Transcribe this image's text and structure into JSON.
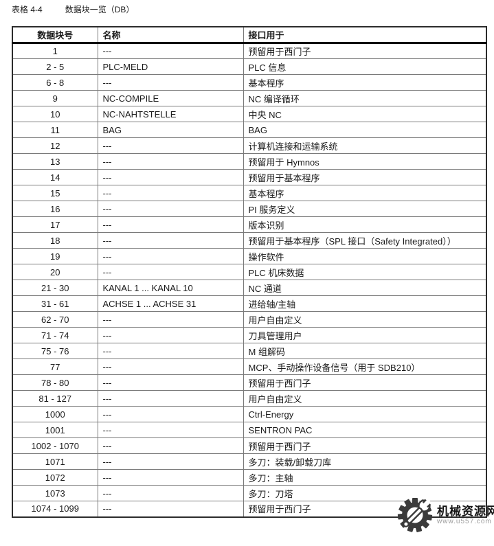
{
  "title": {
    "label": "表格 4-4",
    "caption": "数据块一览（DB）"
  },
  "table": {
    "headers": [
      "数据块号",
      "名称",
      "接口用于"
    ],
    "rows": [
      [
        "1",
        "---",
        "预留用于西门子"
      ],
      [
        "2 - 5",
        "PLC-MELD",
        "PLC 信息"
      ],
      [
        "6 - 8",
        "---",
        "基本程序"
      ],
      [
        "9",
        "NC-COMPILE",
        "NC 编译循环"
      ],
      [
        "10",
        "NC-NAHTSTELLE",
        "中央 NC"
      ],
      [
        "11",
        "BAG",
        "BAG"
      ],
      [
        "12",
        "---",
        "计算机连接和运输系统"
      ],
      [
        "13",
        "---",
        "预留用于 Hymnos"
      ],
      [
        "14",
        "---",
        "预留用于基本程序"
      ],
      [
        "15",
        "---",
        "基本程序"
      ],
      [
        "16",
        "---",
        "PI 服务定义"
      ],
      [
        "17",
        "---",
        "版本识别"
      ],
      [
        "18",
        "---",
        "预留用于基本程序（SPL 接口（Safety Integrated））"
      ],
      [
        "19",
        "---",
        "操作软件"
      ],
      [
        "20",
        "---",
        "PLC 机床数据"
      ],
      [
        "21 - 30",
        "KANAL 1 ... KANAL 10",
        "NC 通道"
      ],
      [
        "31 - 61",
        "ACHSE 1 ... ACHSE 31",
        "进给轴/主轴"
      ],
      [
        "62 - 70",
        "---",
        "用户自由定义"
      ],
      [
        "71 - 74",
        "---",
        "刀具管理用户"
      ],
      [
        "75 - 76",
        "---",
        "M 组解码"
      ],
      [
        "77",
        "---",
        "MCP、手动操作设备信号（用于 SDB210）"
      ],
      [
        "78 - 80",
        "---",
        "预留用于西门子"
      ],
      [
        "81 - 127",
        "---",
        "用户自由定义"
      ],
      [
        "1000",
        "---",
        "Ctrl-Energy"
      ],
      [
        "1001",
        "---",
        "SENTRON PAC"
      ],
      [
        "1002 - 1070",
        "---",
        "预留用于西门子"
      ],
      [
        "1071",
        "---",
        "多刀：装载/卸载刀库"
      ],
      [
        "1072",
        "---",
        "多刀：主轴"
      ],
      [
        "1073",
        "---",
        "多刀：刀塔"
      ],
      [
        "1074 - 1099",
        "---",
        "预留用于西门子"
      ]
    ]
  },
  "watermark": {
    "name": "机械资源网",
    "url": "www.u557.com",
    "icon": "gear-wrench-icon"
  },
  "colors": {
    "text": "#1a1a1a",
    "outer_border": "#2b2b2b",
    "inner_border": "#7a7a7a",
    "header_rule": "#000000",
    "watermark_gray": "#9b9b9b",
    "watermark_dark": "#3b3b3b"
  }
}
